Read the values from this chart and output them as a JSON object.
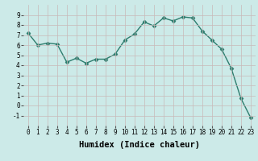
{
  "x": [
    0,
    1,
    2,
    3,
    4,
    5,
    6,
    7,
    8,
    9,
    10,
    11,
    12,
    13,
    14,
    15,
    16,
    17,
    18,
    19,
    20,
    21,
    22,
    23
  ],
  "y": [
    7.2,
    6.0,
    6.2,
    6.1,
    4.3,
    4.7,
    4.2,
    4.6,
    4.6,
    5.1,
    6.5,
    7.1,
    8.3,
    7.9,
    8.7,
    8.4,
    8.8,
    8.7,
    7.4,
    6.5,
    5.6,
    3.7,
    0.7,
    -1.2
  ],
  "line_color": "#2d7d6e",
  "marker": "D",
  "marker_size": 2.5,
  "bg_color": "#cceae8",
  "grid_color": "#c8b8b8",
  "xlabel": "Humidex (Indice chaleur)",
  "ylabel": "",
  "xlim": [
    -0.5,
    23.5
  ],
  "ylim": [
    -2,
    10
  ],
  "yticks": [
    -1,
    0,
    1,
    2,
    3,
    4,
    5,
    6,
    7,
    8,
    9
  ],
  "xticks": [
    0,
    1,
    2,
    3,
    4,
    5,
    6,
    7,
    8,
    9,
    10,
    11,
    12,
    13,
    14,
    15,
    16,
    17,
    18,
    19,
    20,
    21,
    22,
    23
  ],
  "tick_fontsize": 5.5,
  "xlabel_fontsize": 7.5,
  "line_width": 1.0
}
